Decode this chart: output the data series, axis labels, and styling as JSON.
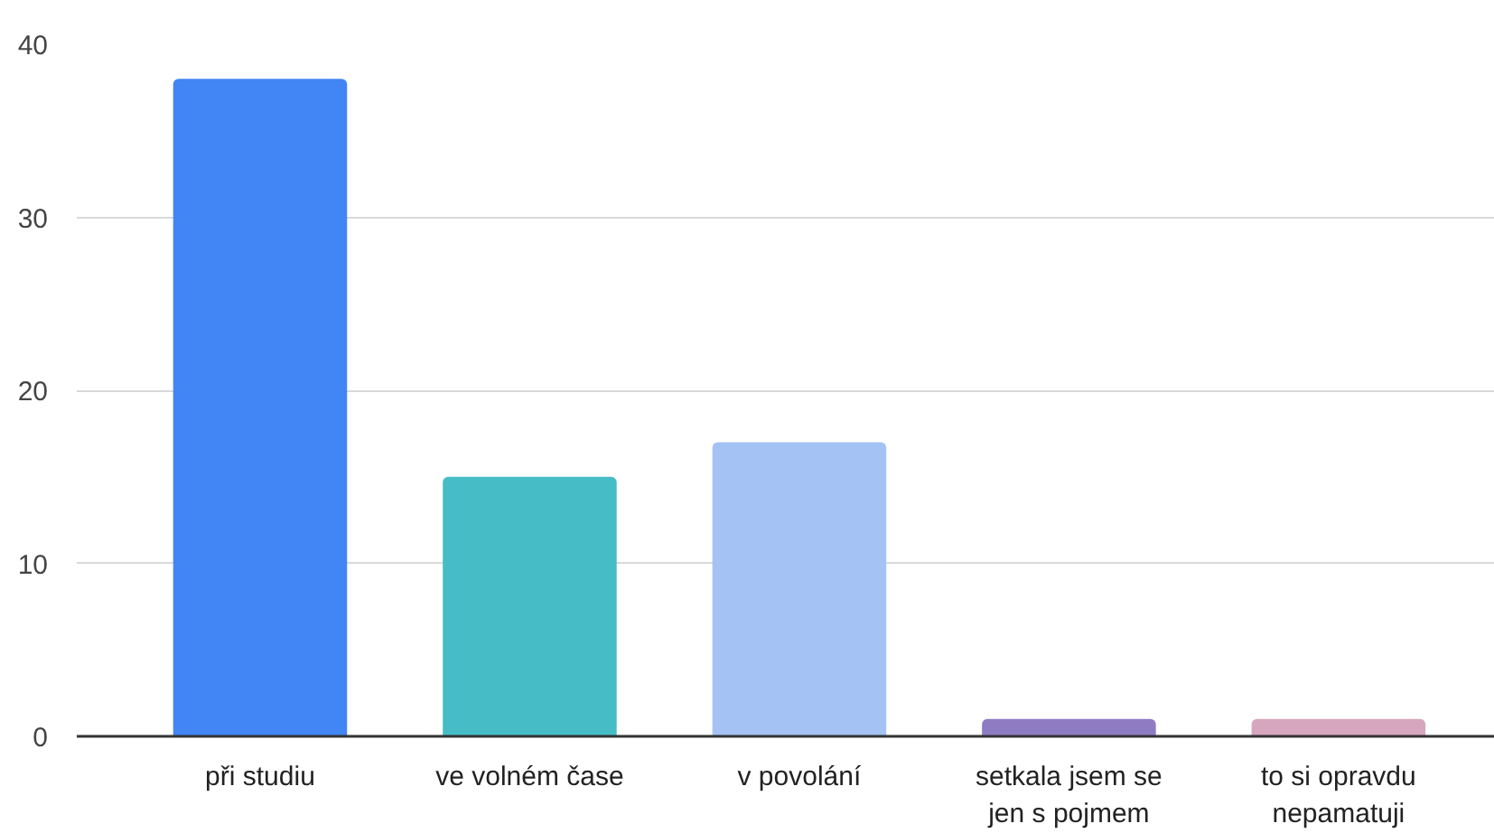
{
  "chart_data": {
    "type": "bar",
    "categories": [
      "při studiu",
      "ve volném čase",
      "v povolání",
      "setkala jsem se jen s pojmem",
      "to si opravdu nepamatuji"
    ],
    "values": [
      38,
      15,
      17,
      1,
      1
    ],
    "colors": [
      "#4285f4",
      "#46bdc6",
      "#a4c2f4",
      "#8e7cc3",
      "#d5a6bd"
    ],
    "ylim": [
      0,
      40
    ],
    "yticks": [
      0,
      10,
      20,
      30,
      40
    ],
    "grid": "y"
  }
}
